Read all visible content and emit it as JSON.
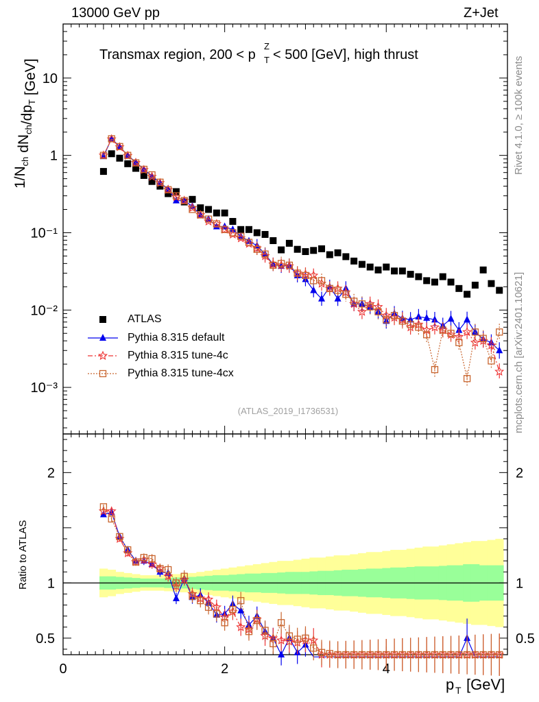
{
  "header": {
    "left": "13000 GeV pp",
    "right": "Z+Jet"
  },
  "side_labels": {
    "rivet": "Rivet 4.1.0, ≥ 100k events",
    "mcplots": "mcplots.cern.ch [arXiv:2401.10621]"
  },
  "reference": "(ATLAS_2019_I1736531)",
  "legend": [
    {
      "label": "ATLAS",
      "color": "#000000",
      "marker": "square"
    },
    {
      "label": "Pythia 8.315 default",
      "color": "#0000ee",
      "marker": "triangle"
    },
    {
      "label": "Pythia 8.315 tune-4c",
      "color": "#ee3333",
      "marker": "star"
    },
    {
      "label": "Pythia 8.315 tune-4cx",
      "color": "#c8642d",
      "marker": "open-square"
    }
  ],
  "colors": {
    "data": "#000000",
    "default": "#0000ee",
    "tune4c": "#ee3333",
    "tune4cx": "#c8642d",
    "band_inner": "#99ff99",
    "band_outer": "#ffff99"
  },
  "chart_data": [
    {
      "type": "scatter",
      "title": "Transmax region, 200 < p_T^Z < 500 [GeV], high thrust",
      "xlabel": "p_T [GeV]",
      "ylabel": "1/N_ch dN_ch/dp_T [GeV]",
      "yscale": "log",
      "xlim": [
        0,
        5.5
      ],
      "ylim": [
        0.00025,
        50
      ],
      "y_ticks": [
        {
          "value": 10,
          "label": "10"
        },
        {
          "value": 1,
          "label": "1"
        },
        {
          "value": 0.1,
          "label": "10⁻¹"
        },
        {
          "value": 0.01,
          "label": "10⁻²"
        },
        {
          "value": 0.001,
          "label": "10⁻³"
        }
      ],
      "x": [
        0.5,
        0.6,
        0.7,
        0.8,
        0.9,
        1.0,
        1.1,
        1.2,
        1.3,
        1.4,
        1.5,
        1.6,
        1.7,
        1.8,
        1.9,
        2.0,
        2.1,
        2.2,
        2.3,
        2.4,
        2.5,
        2.6,
        2.7,
        2.8,
        2.9,
        3.0,
        3.1,
        3.2,
        3.3,
        3.4,
        3.5,
        3.6,
        3.7,
        3.8,
        3.9,
        4.0,
        4.1,
        4.2,
        4.3,
        4.4,
        4.5,
        4.6,
        4.7,
        4.8,
        4.9,
        5.0,
        5.1,
        5.2,
        5.3,
        5.4
      ],
      "series": [
        {
          "name": "ATLAS",
          "values": [
            0.62,
            1.05,
            0.92,
            0.78,
            0.68,
            0.55,
            0.46,
            0.4,
            0.32,
            0.34,
            0.25,
            0.27,
            0.21,
            0.2,
            0.18,
            0.18,
            0.14,
            0.11,
            0.11,
            0.1,
            0.095,
            0.079,
            0.06,
            0.073,
            0.061,
            0.057,
            0.059,
            0.062,
            0.052,
            0.055,
            0.049,
            0.043,
            0.039,
            0.036,
            0.033,
            0.036,
            0.032,
            0.032,
            0.029,
            0.027,
            0.024,
            0.023,
            0.027,
            0.023,
            0.019,
            0.016,
            0.021,
            0.033,
            0.022,
            0.018
          ]
        },
        {
          "name": "Pythia 8.315 default",
          "values": [
            0.97,
            1.65,
            1.3,
            1.0,
            0.82,
            0.66,
            0.54,
            0.44,
            0.37,
            0.26,
            0.26,
            0.22,
            0.17,
            0.15,
            0.12,
            0.12,
            0.11,
            0.09,
            0.078,
            0.068,
            0.053,
            0.039,
            0.037,
            0.038,
            0.028,
            0.025,
            0.018,
            0.014,
            0.02,
            0.014,
            0.019,
            0.012,
            0.012,
            0.011,
            0.0095,
            0.0072,
            0.009,
            0.0078,
            0.0075,
            0.0082,
            0.0079,
            0.0075,
            0.0063,
            0.0077,
            0.0055,
            0.0075,
            0.0052,
            0.0042,
            0.0038,
            0.003
          ]
        },
        {
          "name": "Pythia 8.315 tune-4c",
          "values": [
            1.0,
            1.62,
            1.28,
            0.99,
            0.8,
            0.65,
            0.53,
            0.44,
            0.36,
            0.29,
            0.26,
            0.21,
            0.17,
            0.14,
            0.13,
            0.11,
            0.095,
            0.085,
            0.072,
            0.063,
            0.05,
            0.039,
            0.038,
            0.037,
            0.03,
            0.029,
            0.028,
            0.022,
            0.019,
            0.019,
            0.017,
            0.012,
            0.0095,
            0.012,
            0.011,
            0.0085,
            0.008,
            0.0075,
            0.006,
            0.0065,
            0.0055,
            0.006,
            0.0055,
            0.0048,
            0.0045,
            0.0052,
            0.0038,
            0.004,
            0.0035,
            0.0016
          ]
        },
        {
          "name": "Pythia 8.315 tune-4cx",
          "values": [
            1.0,
            1.64,
            1.3,
            1.0,
            0.8,
            0.66,
            0.56,
            0.45,
            0.36,
            0.3,
            0.26,
            0.2,
            0.17,
            0.15,
            0.13,
            0.11,
            0.1,
            0.09,
            0.075,
            0.061,
            0.053,
            0.038,
            0.04,
            0.038,
            0.03,
            0.028,
            0.024,
            0.024,
            0.019,
            0.018,
            0.016,
            0.013,
            0.012,
            0.011,
            0.0095,
            0.0075,
            0.0085,
            0.0072,
            0.0065,
            0.006,
            0.0048,
            0.0017,
            0.0055,
            0.005,
            0.0038,
            0.0013,
            0.0052,
            0.0043,
            0.0022,
            0.0052
          ]
        }
      ]
    },
    {
      "type": "scatter",
      "title": "",
      "xlabel": "p_T [GeV]",
      "ylabel": "Ratio to ATLAS",
      "xlim": [
        0,
        5.5
      ],
      "ylim": [
        0.35,
        2.35
      ],
      "x_ticks": [
        0,
        2,
        4
      ],
      "y_ticks": [
        0.5,
        1,
        2
      ],
      "band_inner_halfwidth": [
        0.06,
        0.06,
        0.055,
        0.05,
        0.045,
        0.04,
        0.04,
        0.04,
        0.045,
        0.05,
        0.05,
        0.055,
        0.06,
        0.065,
        0.07,
        0.07,
        0.075,
        0.08,
        0.085,
        0.085,
        0.09,
        0.09,
        0.095,
        0.1,
        0.1,
        0.1,
        0.105,
        0.11,
        0.11,
        0.115,
        0.12,
        0.12,
        0.125,
        0.13,
        0.13,
        0.135,
        0.14,
        0.14,
        0.145,
        0.15,
        0.15,
        0.15,
        0.155,
        0.16,
        0.16,
        0.17,
        0.17,
        0.16,
        0.16,
        0.16
      ],
      "band_outer_halfwidth": [
        0.13,
        0.12,
        0.1,
        0.09,
        0.08,
        0.07,
        0.07,
        0.07,
        0.075,
        0.08,
        0.085,
        0.09,
        0.1,
        0.11,
        0.12,
        0.13,
        0.14,
        0.15,
        0.16,
        0.17,
        0.18,
        0.19,
        0.2,
        0.2,
        0.21,
        0.22,
        0.23,
        0.23,
        0.24,
        0.25,
        0.25,
        0.26,
        0.27,
        0.28,
        0.28,
        0.29,
        0.3,
        0.3,
        0.31,
        0.32,
        0.33,
        0.33,
        0.34,
        0.35,
        0.36,
        0.37,
        0.38,
        0.38,
        0.39,
        0.4
      ],
      "series": [
        {
          "name": "Pythia 8.315 default",
          "values": [
            1.62,
            1.64,
            1.42,
            1.3,
            1.2,
            1.2,
            1.17,
            1.1,
            1.09,
            0.86,
            1.04,
            0.87,
            0.89,
            0.82,
            0.71,
            0.72,
            0.81,
            0.75,
            0.62,
            0.7,
            0.56,
            0.5,
            0.35,
            0.5,
            0.37,
            0.44,
            0.33,
            0.33,
            0.33,
            0.33,
            0.33,
            0.33,
            0.33,
            0.33,
            0.33,
            0.33,
            0.33,
            0.33,
            0.33,
            0.33,
            0.33,
            0.33,
            0.33,
            0.33,
            0.33,
            0.5,
            0.33,
            0.33,
            0.33,
            0.33
          ]
        },
        {
          "name": "Pythia 8.315 tune-4c",
          "values": [
            1.65,
            1.65,
            1.4,
            1.27,
            1.19,
            1.21,
            1.17,
            1.13,
            1.06,
            0.97,
            1.03,
            0.9,
            0.86,
            0.85,
            0.78,
            0.69,
            0.74,
            0.6,
            0.58,
            0.67,
            0.52,
            0.5,
            0.48,
            0.47,
            0.46,
            0.48,
            0.48,
            0.35,
            0.35,
            0.35,
            0.35,
            0.35,
            0.35,
            0.35,
            0.35,
            0.35,
            0.35,
            0.35,
            0.35,
            0.35,
            0.35,
            0.35,
            0.35,
            0.35,
            0.35,
            0.35,
            0.35,
            0.35,
            0.35,
            0.35
          ]
        },
        {
          "name": "Pythia 8.315 tune-4cx",
          "values": [
            1.69,
            1.58,
            1.42,
            1.3,
            1.19,
            1.23,
            1.22,
            1.13,
            1.12,
            1.0,
            1.06,
            0.88,
            0.84,
            0.78,
            0.72,
            0.64,
            0.76,
            0.84,
            0.56,
            0.66,
            0.57,
            0.45,
            0.64,
            0.52,
            0.49,
            0.5,
            0.41,
            0.37,
            0.36,
            0.35,
            0.35,
            0.35,
            0.35,
            0.35,
            0.35,
            0.35,
            0.35,
            0.35,
            0.35,
            0.35,
            0.35,
            0.35,
            0.35,
            0.35,
            0.35,
            0.35,
            0.35,
            0.35,
            0.35,
            0.35
          ]
        }
      ]
    }
  ]
}
